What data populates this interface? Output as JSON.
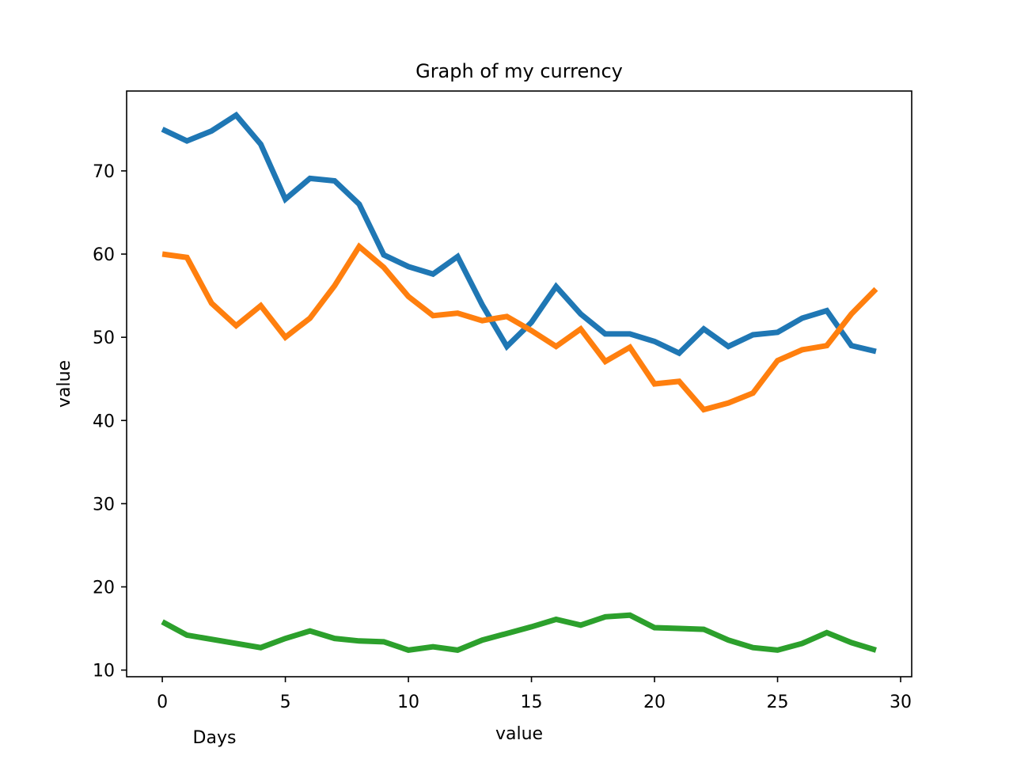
{
  "chart_data": {
    "type": "line",
    "title": "Graph of my currency",
    "xlabel": "value",
    "ylabel": "value",
    "annotation": "Days",
    "xlim": [
      -1.45,
      30.45
    ],
    "ylim": [
      9.2,
      79.6
    ],
    "xticks": [
      0,
      5,
      10,
      15,
      20,
      25,
      30
    ],
    "yticks": [
      10,
      20,
      30,
      40,
      50,
      60,
      70
    ],
    "grid": false,
    "x": [
      0,
      1,
      2,
      3,
      4,
      5,
      6,
      7,
      8,
      9,
      10,
      11,
      12,
      13,
      14,
      15,
      16,
      17,
      18,
      19,
      20,
      21,
      22,
      23,
      24,
      25,
      26,
      27,
      28,
      29
    ],
    "series": [
      {
        "color": "#1f77b4",
        "values": [
          75.0,
          73.6,
          74.8,
          76.7,
          73.2,
          66.6,
          69.1,
          68.8,
          66.0,
          59.9,
          58.5,
          57.6,
          59.7,
          53.9,
          48.9,
          51.8,
          56.1,
          52.8,
          50.4,
          50.4,
          49.5,
          48.1,
          51.0,
          48.9,
          50.3,
          50.6,
          52.3,
          53.2,
          49.0,
          48.3
        ]
      },
      {
        "color": "#ff7f0e",
        "values": [
          60.0,
          59.6,
          54.1,
          51.4,
          53.8,
          50.0,
          52.3,
          56.2,
          60.9,
          58.4,
          54.9,
          52.6,
          52.9,
          52.0,
          52.5,
          50.8,
          48.9,
          51.0,
          47.1,
          48.8,
          44.4,
          44.7,
          41.3,
          42.1,
          43.3,
          47.2,
          48.5,
          49.0,
          52.8,
          55.8
        ]
      },
      {
        "color": "#2ca02c",
        "values": [
          15.8,
          14.2,
          13.7,
          13.2,
          12.7,
          13.8,
          14.7,
          13.8,
          13.5,
          13.4,
          12.4,
          12.8,
          12.4,
          13.6,
          14.4,
          15.2,
          16.1,
          15.4,
          16.4,
          16.6,
          15.1,
          15.0,
          14.9,
          13.6,
          12.7,
          12.4,
          13.2,
          14.5,
          13.3,
          12.4
        ]
      }
    ]
  }
}
